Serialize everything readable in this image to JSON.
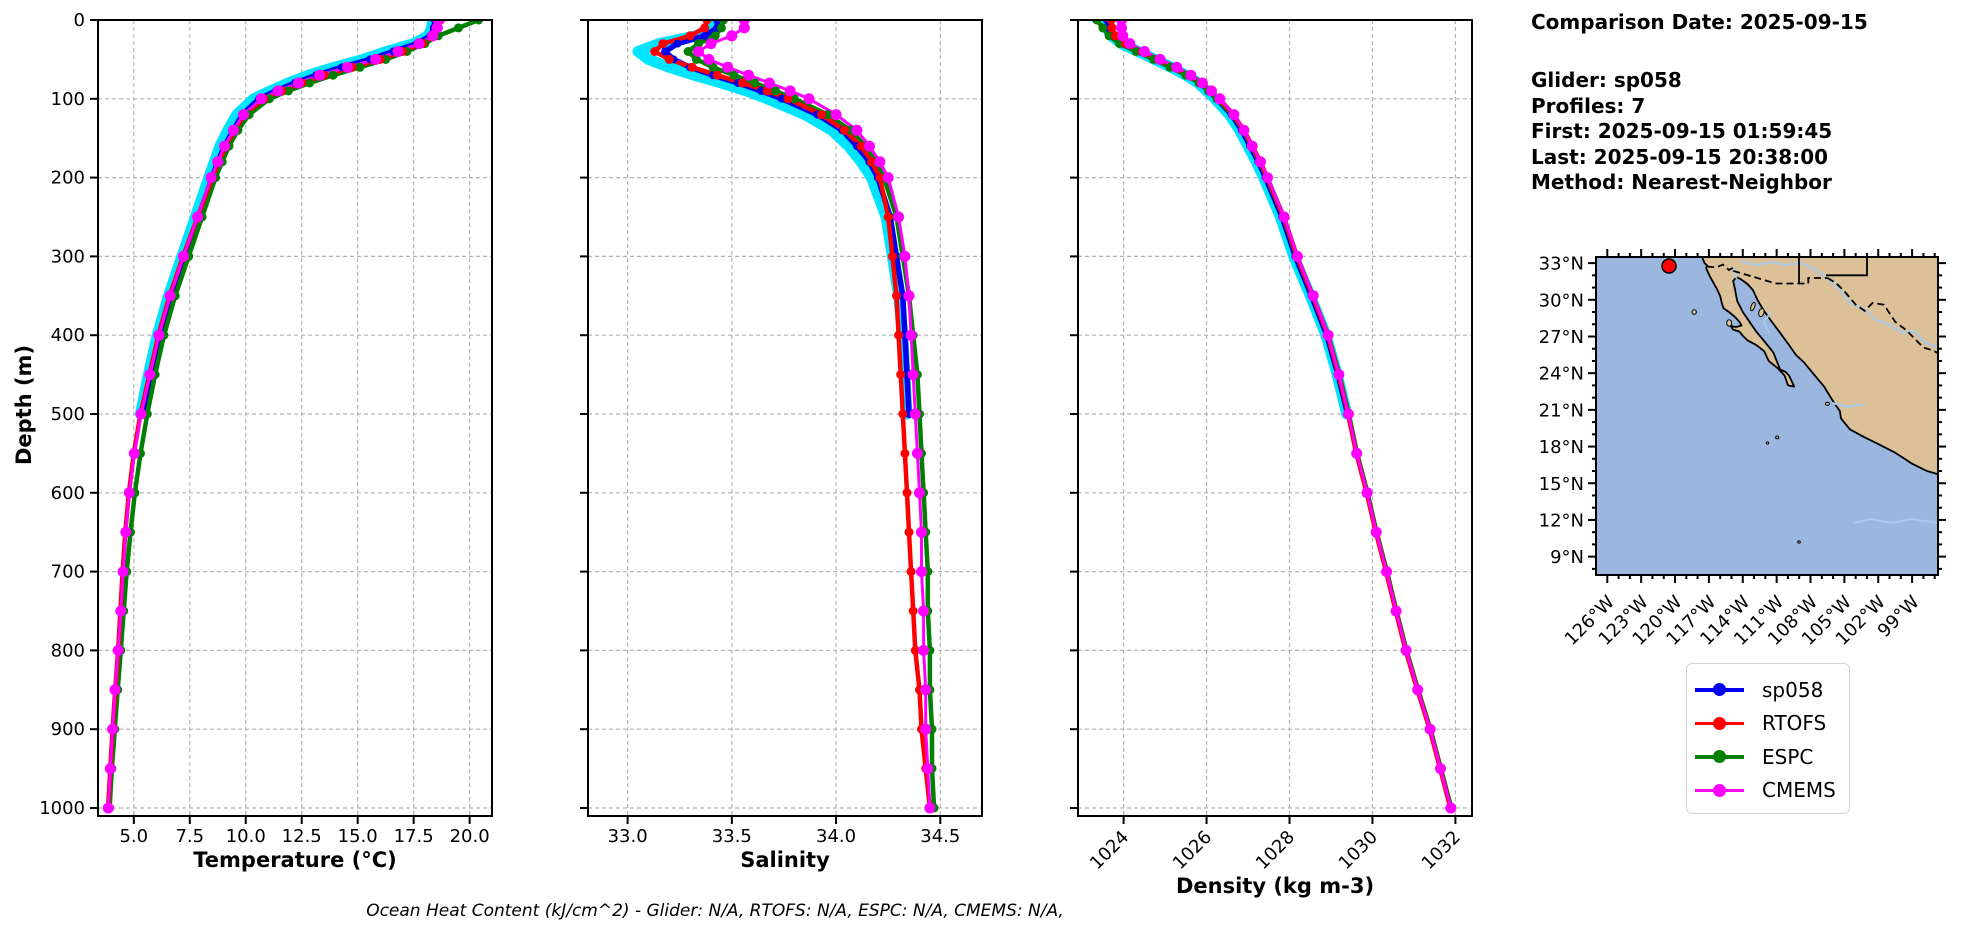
{
  "info": {
    "lines": [
      "Comparison Date: 2025-09-15",
      "",
      "Glider: sp058",
      "Profiles: 7",
      "First: 2025-09-15 01:59:45",
      "Last: 2025-09-15 20:38:00",
      "Method: Nearest-Neighbor"
    ]
  },
  "caption": "Ocean Heat Content (kJ/cm^2) - Glider: N/A,  RTOFS: N/A,  ESPC: N/A,  CMEMS: N/A,",
  "legend": {
    "items": [
      {
        "label": "sp058",
        "color": "#0000ee"
      },
      {
        "label": "RTOFS",
        "color": "#ff0000"
      },
      {
        "label": "ESPC",
        "color": "#008000"
      },
      {
        "label": "CMEMS",
        "color": "#ff00ff"
      }
    ]
  },
  "map": {
    "lat_labels": [
      "33°N",
      "30°N",
      "27°N",
      "24°N",
      "21°N",
      "18°N",
      "15°N",
      "12°N",
      "9°N"
    ],
    "lon_labels": [
      "126°W",
      "123°W",
      "120°W",
      "117°W",
      "114°W",
      "111°W",
      "108°W",
      "105°W",
      "102°W",
      "99°W"
    ],
    "colors": {
      "ocean": "#9cb7df",
      "land": "#dcc098",
      "river": "#a9c9ea",
      "marker": "#ff0000"
    },
    "glider_position": {
      "lon": "120.6W",
      "lat": "32.8N"
    }
  },
  "chart_data": {
    "type": "line",
    "title": "",
    "ylabel": "Depth (m)",
    "ylim": [
      0,
      1010
    ],
    "yticks": [
      0,
      100,
      200,
      300,
      400,
      500,
      600,
      700,
      800,
      900,
      1000
    ],
    "ytick_labels": [
      "0",
      "100",
      "200",
      "300",
      "400",
      "500",
      "600",
      "700",
      "800",
      "900",
      "1000"
    ],
    "grid": true,
    "legend_position": "below-map",
    "panels": [
      {
        "id": "temperature",
        "xlabel": "Temperature (°C)",
        "xlim": [
          3.4,
          21.0
        ],
        "xticks": [
          5.0,
          7.5,
          10.0,
          12.5,
          15.0,
          17.5,
          20.0
        ],
        "xtick_labels": [
          "5.0",
          "7.5",
          "10.0",
          "12.5",
          "15.0",
          "17.5",
          "20.0"
        ],
        "rotate_ticks": 0
      },
      {
        "id": "salinity",
        "xlabel": "Salinity",
        "xlim": [
          32.81,
          34.7
        ],
        "xticks": [
          33.0,
          33.5,
          34.0,
          34.5
        ],
        "xtick_labels": [
          "33.0",
          "33.5",
          "34.0",
          "34.5"
        ],
        "rotate_ticks": 0
      },
      {
        "id": "density",
        "xlabel": "Density (kg m-3)",
        "xlim": [
          1022.9,
          1032.4
        ],
        "xticks": [
          1024,
          1026,
          1028,
          1030,
          1032
        ],
        "xtick_labels": [
          "1024",
          "1026",
          "1028",
          "1030",
          "1032"
        ],
        "rotate_ticks": -45
      }
    ],
    "depths": {
      "glider": [
        0,
        10,
        20,
        30,
        40,
        50,
        60,
        70,
        80,
        90,
        100,
        120,
        140,
        160,
        180,
        200,
        250,
        300,
        350,
        400,
        450,
        500
      ],
      "model": [
        0,
        10,
        20,
        30,
        40,
        50,
        60,
        70,
        80,
        90,
        100,
        120,
        140,
        160,
        180,
        200,
        250,
        300,
        350,
        400,
        450,
        500,
        550,
        600,
        650,
        700,
        750,
        800,
        850,
        900,
        950,
        1000
      ]
    },
    "series": [
      {
        "name": "spread",
        "color": "#00e5ff",
        "width": 11,
        "marker": 0,
        "depth_key": "glider",
        "in_legend": false,
        "profiles": {
          "temperature": [
            18.35,
            18.3,
            18.15,
            17.5,
            16.3,
            15.25,
            13.95,
            12.8,
            11.9,
            11.1,
            10.35,
            9.6,
            9.2,
            8.85,
            8.6,
            8.35,
            7.75,
            7.15,
            6.55,
            6.05,
            5.65,
            5.3
          ],
          "salinity": [
            33.4,
            33.4,
            33.33,
            33.15,
            33.05,
            33.1,
            33.2,
            33.32,
            33.45,
            33.57,
            33.67,
            33.85,
            33.98,
            34.06,
            34.12,
            34.17,
            34.24,
            34.27,
            34.3,
            34.32,
            34.33,
            34.34
          ],
          "density": [
            1023.55,
            1023.6,
            1023.7,
            1023.95,
            1024.35,
            1024.75,
            1025.15,
            1025.5,
            1025.8,
            1026.0,
            1026.2,
            1026.55,
            1026.8,
            1027.0,
            1027.2,
            1027.38,
            1027.78,
            1028.1,
            1028.5,
            1028.88,
            1029.15,
            1029.38
          ]
        }
      },
      {
        "name": "sp058",
        "color": "#0000ee",
        "width": 5.5,
        "marker": 4,
        "depth_key": "glider",
        "in_legend": true,
        "profiles": {
          "temperature": [
            18.45,
            18.4,
            18.25,
            17.65,
            16.6,
            15.55,
            14.3,
            13.15,
            12.2,
            11.35,
            10.6,
            9.85,
            9.45,
            9.05,
            8.75,
            8.5,
            7.9,
            7.3,
            6.7,
            6.2,
            5.8,
            5.4
          ],
          "salinity": [
            33.43,
            33.43,
            33.37,
            33.24,
            33.18,
            33.22,
            33.3,
            33.41,
            33.53,
            33.64,
            33.74,
            33.91,
            34.03,
            34.1,
            34.16,
            34.2,
            34.26,
            34.29,
            34.32,
            34.33,
            34.34,
            34.35
          ],
          "density": [
            1023.6,
            1023.65,
            1023.75,
            1024.0,
            1024.4,
            1024.8,
            1025.2,
            1025.55,
            1025.85,
            1026.05,
            1026.25,
            1026.6,
            1026.85,
            1027.05,
            1027.25,
            1027.42,
            1027.82,
            1028.14,
            1028.53,
            1028.9,
            1029.17,
            1029.4
          ]
        }
      },
      {
        "name": "ESPC",
        "color": "#008000",
        "width": 4.5,
        "marker": 4.5,
        "depth_key": "model",
        "in_legend": true,
        "profiles": {
          "temperature": [
            20.4,
            19.5,
            18.6,
            18.0,
            17.2,
            16.25,
            15.1,
            13.9,
            12.85,
            11.9,
            11.05,
            10.15,
            9.65,
            9.25,
            8.95,
            8.65,
            8.05,
            7.45,
            6.85,
            6.35,
            5.95,
            5.6,
            5.3,
            5.05,
            4.85,
            4.68,
            4.55,
            4.42,
            4.28,
            4.15,
            4.02,
            3.92
          ],
          "salinity": [
            33.46,
            33.45,
            33.42,
            33.34,
            33.29,
            33.33,
            33.41,
            33.51,
            33.61,
            33.71,
            33.8,
            33.96,
            34.07,
            34.14,
            34.19,
            34.23,
            34.29,
            34.32,
            34.35,
            34.37,
            34.39,
            34.4,
            34.41,
            34.42,
            34.43,
            34.44,
            34.44,
            34.45,
            34.45,
            34.46,
            34.46,
            34.47
          ],
          "density": [
            1023.35,
            1023.5,
            1023.65,
            1023.9,
            1024.3,
            1024.72,
            1025.12,
            1025.5,
            1025.82,
            1026.05,
            1026.25,
            1026.62,
            1026.88,
            1027.08,
            1027.28,
            1027.45,
            1027.85,
            1028.17,
            1028.56,
            1028.93,
            1029.2,
            1029.43,
            1029.63,
            1029.88,
            1030.1,
            1030.35,
            1030.58,
            1030.82,
            1031.1,
            1031.4,
            1031.65,
            1031.9
          ]
        }
      },
      {
        "name": "RTOFS",
        "color": "#ff0000",
        "width": 4.5,
        "marker": 4.5,
        "depth_key": "model",
        "in_legend": true,
        "profiles": {
          "temperature": [
            18.7,
            18.6,
            18.4,
            17.9,
            17.0,
            16.0,
            14.75,
            13.5,
            12.5,
            11.6,
            10.8,
            9.95,
            9.5,
            9.1,
            8.8,
            8.5,
            7.85,
            7.2,
            6.6,
            6.1,
            5.7,
            5.3,
            5.0,
            4.78,
            4.62,
            4.5,
            4.4,
            4.3,
            4.17,
            4.05,
            3.95,
            3.85
          ],
          "salinity": [
            33.38,
            33.37,
            33.3,
            33.17,
            33.13,
            33.2,
            33.31,
            33.43,
            33.55,
            33.67,
            33.77,
            33.93,
            34.04,
            34.12,
            34.17,
            34.21,
            34.25,
            34.27,
            34.29,
            34.3,
            34.31,
            34.32,
            34.33,
            34.34,
            34.35,
            34.36,
            34.37,
            34.38,
            34.4,
            34.41,
            34.43,
            34.45
          ],
          "density": [
            1023.7,
            1023.72,
            1023.8,
            1024.05,
            1024.45,
            1024.85,
            1025.25,
            1025.6,
            1025.9,
            1026.1,
            1026.3,
            1026.65,
            1026.9,
            1027.1,
            1027.3,
            1027.46,
            1027.86,
            1028.18,
            1028.56,
            1028.92,
            1029.18,
            1029.41,
            1029.61,
            1029.86,
            1030.08,
            1030.33,
            1030.56,
            1030.8,
            1031.08,
            1031.38,
            1031.63,
            1031.88
          ]
        }
      },
      {
        "name": "CMEMS",
        "color": "#ff00ff",
        "width": 3,
        "marker": 5.5,
        "depth_key": "model",
        "in_legend": true,
        "profiles": {
          "temperature": [
            18.6,
            18.55,
            18.35,
            17.75,
            16.8,
            15.8,
            14.55,
            13.3,
            12.35,
            11.45,
            10.7,
            9.9,
            9.45,
            9.05,
            8.75,
            8.45,
            7.85,
            7.22,
            6.62,
            6.12,
            5.72,
            5.32,
            5.02,
            4.8,
            4.64,
            4.52,
            4.42,
            4.3,
            4.16,
            4.05,
            3.95,
            3.86
          ],
          "salinity": [
            33.56,
            33.56,
            33.5,
            33.4,
            33.34,
            33.39,
            33.48,
            33.58,
            33.68,
            33.78,
            33.87,
            34.0,
            34.1,
            34.16,
            34.21,
            34.25,
            34.3,
            34.33,
            34.35,
            34.36,
            34.37,
            34.38,
            34.39,
            34.4,
            34.41,
            34.41,
            34.42,
            34.42,
            34.43,
            34.43,
            34.44,
            34.45
          ],
          "density": [
            1023.95,
            1023.95,
            1023.98,
            1024.15,
            1024.5,
            1024.88,
            1025.28,
            1025.62,
            1025.9,
            1026.12,
            1026.32,
            1026.66,
            1026.9,
            1027.1,
            1027.3,
            1027.47,
            1027.87,
            1028.19,
            1028.57,
            1028.93,
            1029.19,
            1029.42,
            1029.62,
            1029.87,
            1030.09,
            1030.34,
            1030.57,
            1030.81,
            1031.09,
            1031.39,
            1031.64,
            1031.89
          ]
        }
      }
    ]
  }
}
